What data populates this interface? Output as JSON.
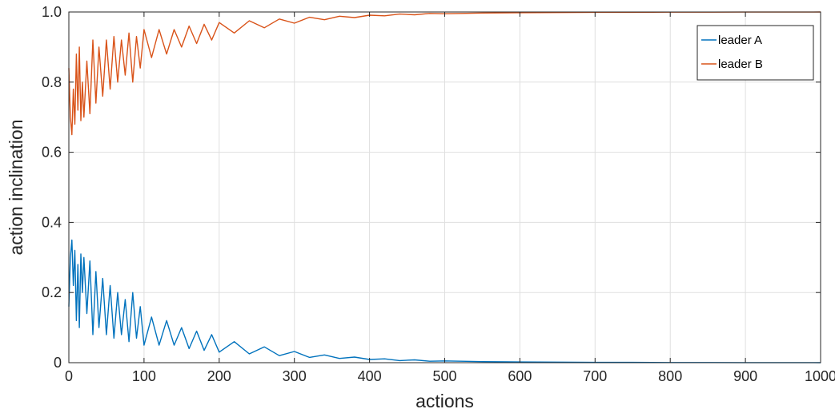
{
  "chart_data": {
    "type": "line",
    "xlabel": "actions",
    "ylabel": "action inclination",
    "xlim": [
      0,
      1000
    ],
    "ylim": [
      0,
      1
    ],
    "x_ticks": [
      0,
      100,
      200,
      300,
      400,
      500,
      600,
      700,
      800,
      900,
      1000
    ],
    "y_ticks": [
      0,
      0.2,
      0.4,
      0.6,
      0.8,
      1.0
    ],
    "x_tick_labels": [
      "0",
      "100",
      "200",
      "300",
      "400",
      "500",
      "600",
      "700",
      "800",
      "900",
      "1000"
    ],
    "y_tick_labels": [
      "0",
      "0.2",
      "0.4",
      "0.6",
      "0.8",
      "1.0"
    ],
    "grid": true,
    "legend_position": "top-right",
    "series": [
      {
        "name": "leader A",
        "color": "#0072BD",
        "x": [
          0,
          2,
          4,
          6,
          8,
          10,
          12,
          14,
          16,
          18,
          20,
          24,
          28,
          32,
          36,
          40,
          45,
          50,
          55,
          60,
          65,
          70,
          75,
          80,
          85,
          90,
          95,
          100,
          110,
          120,
          130,
          140,
          150,
          160,
          170,
          180,
          190,
          200,
          220,
          240,
          260,
          280,
          300,
          320,
          340,
          360,
          380,
          400,
          420,
          440,
          460,
          480,
          500,
          550,
          600,
          650,
          700,
          750,
          800,
          850,
          900,
          950,
          1000
        ],
        "y": [
          0.16,
          0.3,
          0.35,
          0.22,
          0.32,
          0.12,
          0.28,
          0.1,
          0.31,
          0.2,
          0.3,
          0.14,
          0.29,
          0.08,
          0.26,
          0.1,
          0.24,
          0.08,
          0.22,
          0.07,
          0.2,
          0.08,
          0.18,
          0.06,
          0.2,
          0.07,
          0.16,
          0.05,
          0.13,
          0.05,
          0.12,
          0.05,
          0.1,
          0.04,
          0.09,
          0.035,
          0.08,
          0.03,
          0.06,
          0.025,
          0.045,
          0.02,
          0.032,
          0.015,
          0.022,
          0.012,
          0.016,
          0.009,
          0.011,
          0.006,
          0.008,
          0.004,
          0.005,
          0.003,
          0.002,
          0.0015,
          0.001,
          0.0008,
          0.0005,
          0.0004,
          0.0003,
          0.0002,
          0.0001
        ]
      },
      {
        "name": "leader B",
        "color": "#D95319",
        "x": [
          0,
          2,
          4,
          6,
          8,
          10,
          12,
          14,
          16,
          18,
          20,
          24,
          28,
          32,
          36,
          40,
          45,
          50,
          55,
          60,
          65,
          70,
          75,
          80,
          85,
          90,
          95,
          100,
          110,
          120,
          130,
          140,
          150,
          160,
          170,
          180,
          190,
          200,
          220,
          240,
          260,
          280,
          300,
          320,
          340,
          360,
          380,
          400,
          420,
          440,
          460,
          480,
          500,
          550,
          600,
          650,
          700,
          750,
          800,
          850,
          900,
          950,
          1000
        ],
        "y": [
          0.84,
          0.7,
          0.65,
          0.78,
          0.68,
          0.88,
          0.72,
          0.9,
          0.69,
          0.8,
          0.7,
          0.86,
          0.71,
          0.92,
          0.74,
          0.9,
          0.76,
          0.92,
          0.78,
          0.93,
          0.8,
          0.92,
          0.82,
          0.94,
          0.8,
          0.93,
          0.84,
          0.95,
          0.87,
          0.95,
          0.88,
          0.95,
          0.9,
          0.96,
          0.91,
          0.965,
          0.92,
          0.97,
          0.94,
          0.975,
          0.955,
          0.98,
          0.968,
          0.985,
          0.978,
          0.988,
          0.984,
          0.991,
          0.989,
          0.994,
          0.992,
          0.996,
          0.995,
          0.997,
          0.998,
          0.9985,
          0.999,
          0.9992,
          0.9995,
          0.9996,
          0.9997,
          0.9998,
          0.9999
        ]
      }
    ]
  }
}
